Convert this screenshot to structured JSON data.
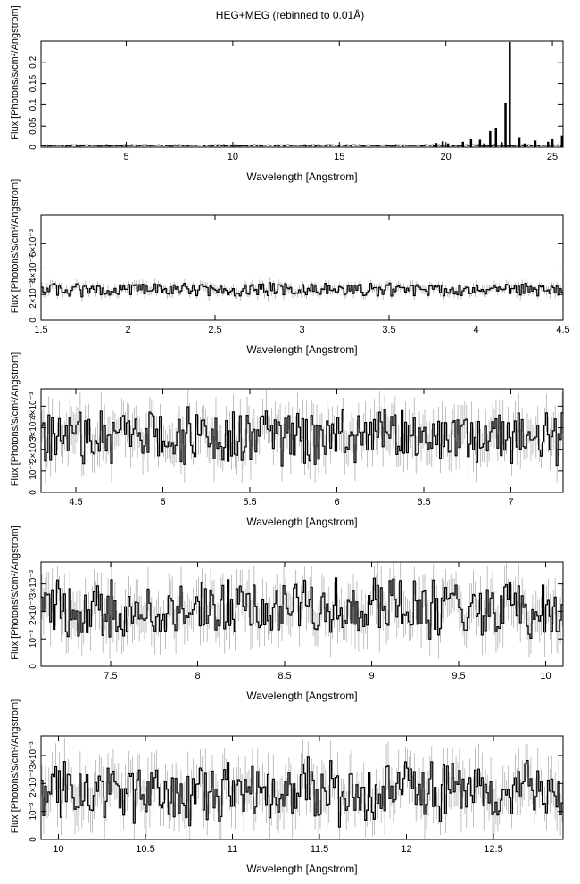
{
  "title": "HEG+MEG (rebinned to 0.01Å)",
  "xlabel": "Wavelength [Angstrom]",
  "ylabel": "Flux [Photons/s/cm²/Angstrom]",
  "colors": {
    "data": "#000000",
    "errorbars": "#b0b0b0",
    "axes": "#000000"
  },
  "chart_data": [
    {
      "type": "line",
      "style": "histogram-step",
      "xlim": [
        1.0,
        25.5
      ],
      "ylim": [
        0,
        0.25
      ],
      "xticks": [
        5,
        10,
        15,
        20,
        25
      ],
      "xtick_labels": [
        "5",
        "10",
        "15",
        "20",
        "25"
      ],
      "yticks": [
        0,
        0.05,
        0.1,
        0.15,
        0.2
      ],
      "ytick_labels": [
        "0",
        "0.05",
        "0.1",
        "0.15",
        "0.2"
      ],
      "lines": [
        {
          "x": 19.55,
          "y": 0.01
        },
        {
          "x": 19.85,
          "y": 0.014
        },
        {
          "x": 20.1,
          "y": 0.009
        },
        {
          "x": 20.8,
          "y": 0.013
        },
        {
          "x": 21.18,
          "y": 0.019
        },
        {
          "x": 21.6,
          "y": 0.018
        },
        {
          "x": 21.8,
          "y": 0.009
        },
        {
          "x": 22.08,
          "y": 0.038
        },
        {
          "x": 22.35,
          "y": 0.045
        },
        {
          "x": 22.62,
          "y": 0.012
        },
        {
          "x": 22.8,
          "y": 0.105
        },
        {
          "x": 23.0,
          "y": 0.248
        },
        {
          "x": 23.45,
          "y": 0.022
        },
        {
          "x": 23.7,
          "y": 0.009
        },
        {
          "x": 24.2,
          "y": 0.016
        },
        {
          "x": 24.8,
          "y": 0.013
        },
        {
          "x": 25.0,
          "y": 0.019
        },
        {
          "x": 25.45,
          "y": 0.028
        }
      ]
    },
    {
      "type": "line",
      "style": "histogram-step",
      "xlim": [
        1.5,
        4.5
      ],
      "ylim": [
        0,
        0.0082
      ],
      "bin_width": 0.01,
      "baseline": 0.0024,
      "noise": [
        0.0024,
        0.0006
      ],
      "xticks": [
        1.5,
        2,
        2.5,
        3,
        3.5,
        4,
        4.5
      ],
      "xtick_labels": [
        "1.5",
        "2",
        "2.5",
        "3",
        "3.5",
        "4",
        "4.5"
      ],
      "yticks": [
        0,
        0.002,
        0.004,
        0.006
      ],
      "ytick_labels": [
        "0",
        "2×10⁻³",
        "4×10⁻³",
        "6×10⁻³"
      ]
    },
    {
      "type": "line",
      "style": "histogram-step",
      "xlim": [
        4.3,
        7.3
      ],
      "ylim": [
        0,
        0.0048
      ],
      "bin_width": 0.01,
      "baseline": 0.0026,
      "noise": [
        0.0026,
        0.0015
      ],
      "xticks": [
        4.5,
        5,
        5.5,
        6,
        6.5,
        7
      ],
      "xtick_labels": [
        "4.5",
        "5",
        "5.5",
        "6",
        "6.5",
        "7"
      ],
      "yticks": [
        0,
        0.001,
        0.002,
        0.003,
        0.004
      ],
      "ytick_labels": [
        "0",
        "10⁻³",
        "2×10⁻³",
        "3×10⁻³",
        "4×10⁻³"
      ]
    },
    {
      "type": "line",
      "style": "histogram-step",
      "xlim": [
        7.1,
        10.1
      ],
      "ylim": [
        0,
        0.0038
      ],
      "bin_width": 0.01,
      "baseline": 0.0021,
      "noise": [
        0.0021,
        0.0013
      ],
      "xticks": [
        7.5,
        8,
        8.5,
        9,
        9.5,
        10
      ],
      "xtick_labels": [
        "7.5",
        "8",
        "8.5",
        "9",
        "9.5",
        "10"
      ],
      "yticks": [
        0,
        0.001,
        0.002,
        0.003
      ],
      "ytick_labels": [
        "0",
        "10⁻³",
        "2×10⁻³",
        "3×10⁻³"
      ]
    },
    {
      "type": "line",
      "style": "histogram-step",
      "xlim": [
        9.9,
        12.9
      ],
      "ylim": [
        0,
        0.0037
      ],
      "bin_width": 0.01,
      "baseline": 0.0017,
      "noise": [
        0.0017,
        0.0013
      ],
      "xticks": [
        10,
        10.5,
        11,
        11.5,
        12,
        12.5
      ],
      "xtick_labels": [
        "10",
        "10.5",
        "11",
        "11.5",
        "12",
        "12.5"
      ],
      "yticks": [
        0,
        0.001,
        0.002,
        0.003
      ],
      "ytick_labels": [
        "0",
        "10⁻³",
        "2×10⁻³",
        "3×10⁻³"
      ]
    }
  ]
}
